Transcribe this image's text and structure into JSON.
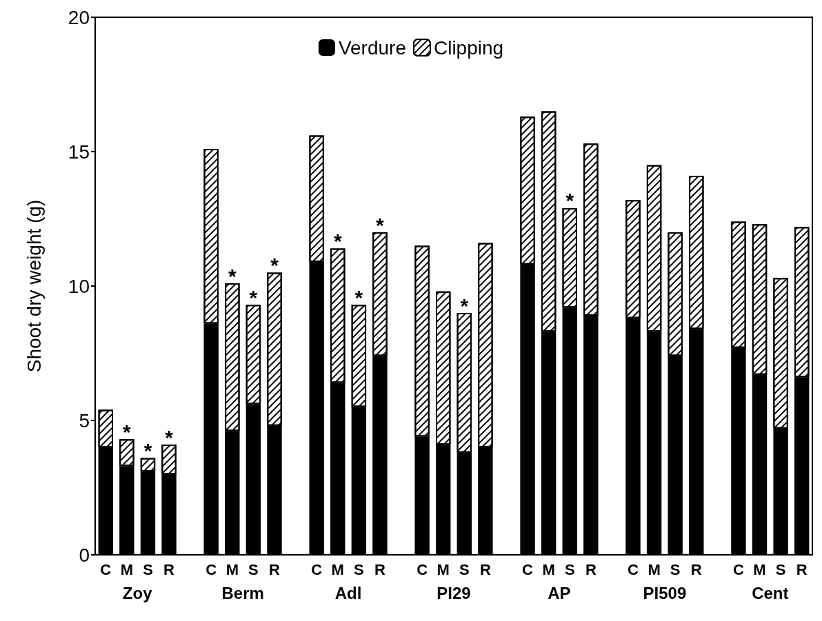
{
  "chart_data": {
    "type": "bar",
    "stacked": true,
    "ylabel": "Shoot dry weight (g)",
    "categories": [
      "C",
      "M",
      "S",
      "R",
      null,
      "C",
      "M",
      "S",
      "R",
      null,
      "C",
      "M",
      "S",
      "R",
      null,
      "C",
      "M",
      "S",
      "R",
      null,
      "C",
      "M",
      "S",
      "R",
      null,
      "C",
      "M",
      "S",
      "R",
      null,
      "C",
      "M",
      "S",
      "R"
    ],
    "series": [
      {
        "name": "Verdure",
        "color": "#000000",
        "values": [
          4.0,
          3.3,
          3.1,
          3.0,
          null,
          8.6,
          4.6,
          5.6,
          4.8,
          null,
          10.9,
          6.4,
          5.5,
          7.4,
          null,
          4.4,
          4.1,
          3.8,
          4.0,
          null,
          10.8,
          8.3,
          9.2,
          8.9,
          null,
          8.8,
          8.3,
          7.4,
          8.4,
          null,
          7.7,
          6.7,
          4.7,
          6.6
        ]
      },
      {
        "name": "Clipping",
        "color": "#000000",
        "values": [
          1.4,
          1.0,
          0.5,
          1.1,
          null,
          6.5,
          5.5,
          3.7,
          5.7,
          null,
          4.7,
          5.0,
          3.8,
          4.6,
          null,
          7.1,
          5.7,
          5.2,
          7.6,
          null,
          5.5,
          8.2,
          3.7,
          6.4,
          null,
          4.4,
          6.2,
          4.6,
          5.7,
          null,
          4.7,
          5.6,
          5.6,
          5.6
        ],
        "value_labels": [
          null,
          "*",
          "*",
          "*",
          null,
          null,
          "*",
          "*",
          "*",
          null,
          null,
          "*",
          "*",
          "*",
          null,
          null,
          null,
          "*",
          null,
          null,
          null,
          null,
          "*",
          null,
          null,
          null,
          null,
          null,
          null,
          null,
          null,
          null,
          null,
          null
        ]
      }
    ],
    "annotations": [
      "Zoy",
      "Berm",
      "Adl",
      "PI29",
      "AP",
      "PI509",
      "Cent"
    ],
    "ylim": [
      0,
      20
    ],
    "yticks": [
      0,
      5,
      10,
      15,
      20
    ],
    "grid": false,
    "legend": "top"
  }
}
